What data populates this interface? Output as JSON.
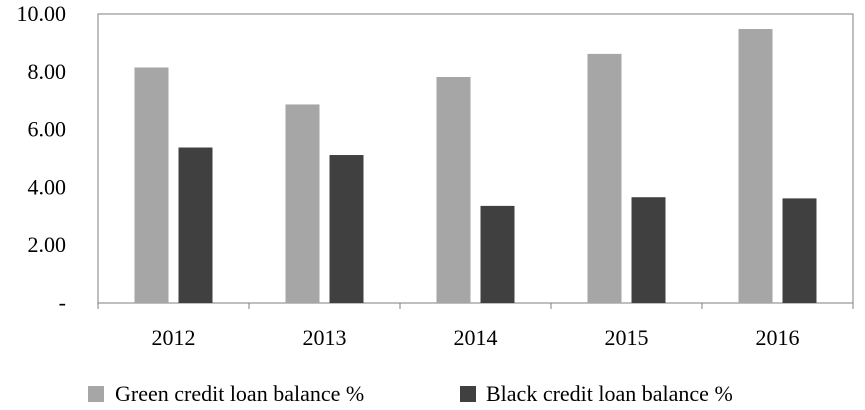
{
  "chart_data": {
    "type": "bar",
    "title": "",
    "xlabel": "",
    "ylabel": "",
    "categories": [
      "2012",
      "2013",
      "2014",
      "2015",
      "2016"
    ],
    "series": [
      {
        "name": "Green credit loan balance %",
        "color": "#a6a6a6",
        "values": [
          8.15,
          6.87,
          7.82,
          8.62,
          9.48
        ]
      },
      {
        "name": "Black credit loan balance %",
        "color": "#404040",
        "values": [
          5.38,
          5.12,
          3.36,
          3.66,
          3.62
        ]
      }
    ],
    "ylim": [
      0,
      10
    ],
    "yticks": [
      0,
      2,
      4,
      6,
      8,
      10
    ],
    "ytick_labels": [
      "-",
      "2.00",
      "4.00",
      "6.00",
      "8.00",
      "10.00"
    ],
    "grid": false,
    "legend_position": "bottom"
  }
}
